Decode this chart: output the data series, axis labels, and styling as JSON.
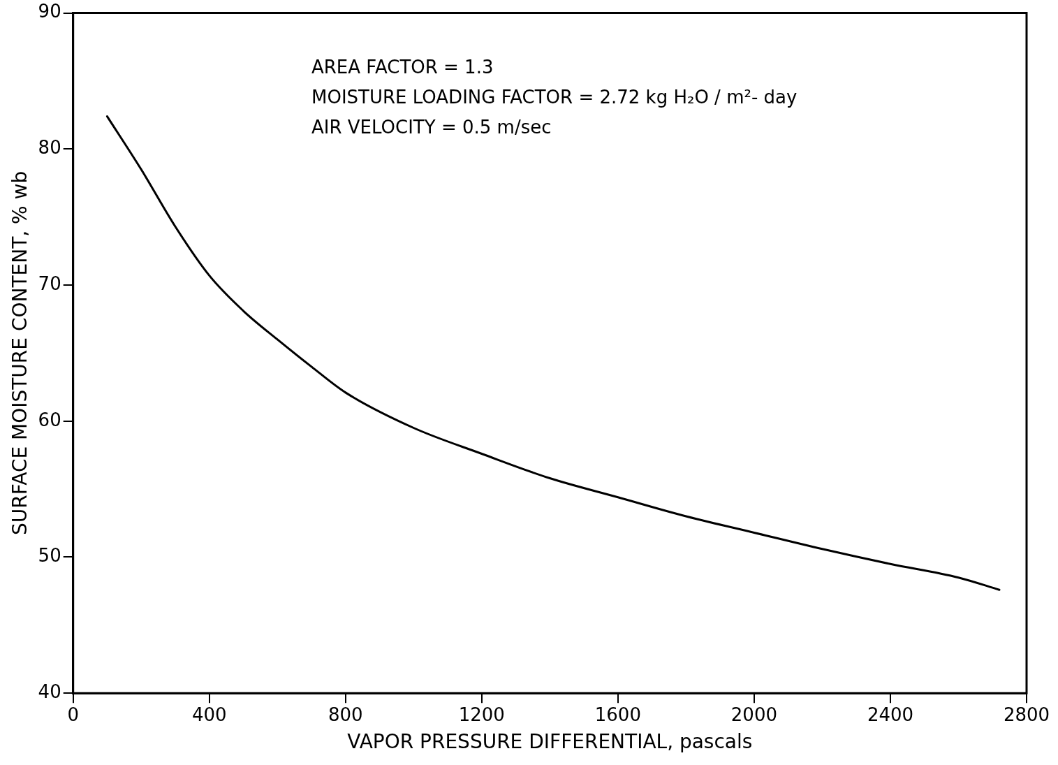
{
  "chart_data": {
    "type": "line",
    "xlabel": "VAPOR PRESSURE DIFFERENTIAL, pascals",
    "ylabel": "SURFACE MOISTURE CONTENT, % wb",
    "x": [
      100,
      200,
      300,
      400,
      500,
      600,
      700,
      800,
      1000,
      1200,
      1400,
      1600,
      1800,
      2000,
      2200,
      2400,
      2600,
      2720
    ],
    "series": [
      {
        "color": "#000000",
        "values": [
          82.4,
          78.5,
          74.3,
          70.7,
          68.1,
          66.0,
          64.0,
          62.1,
          59.5,
          57.6,
          55.8,
          54.4,
          53.0,
          51.8,
          50.6,
          49.5,
          48.5,
          47.6
        ]
      }
    ],
    "xlim": [
      0,
      2800
    ],
    "xticks": [
      0,
      400,
      800,
      1200,
      1600,
      2000,
      2400,
      2800
    ],
    "ylim": [
      40,
      90
    ],
    "yticks": [
      40,
      50,
      60,
      70,
      80,
      90
    ],
    "grid": false,
    "legend": false,
    "marker": "none",
    "line_style": "solid",
    "annotations": [
      "AREA FACTOR = 1.3",
      "MOISTURE LOADING FACTOR = 2.72 kg H₂O / m²- day",
      "AIR VELOCITY = 0.5 m/sec"
    ]
  }
}
